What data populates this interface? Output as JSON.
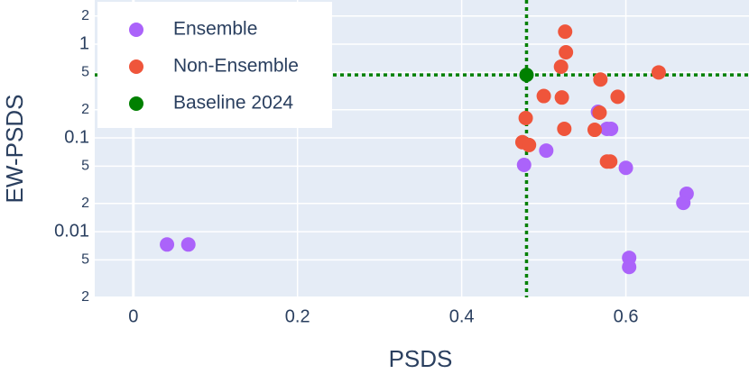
{
  "chart_data": {
    "type": "scatter",
    "x_label": "PSDS",
    "y_label": "EW-PSDS",
    "xlim": [
      -0.047,
      0.75
    ],
    "ylim": [
      0.00199,
      2.96
    ],
    "y_log": true,
    "grid": true,
    "legend": "top-left",
    "xticks": [
      0,
      0.2,
      0.4,
      0.6
    ],
    "yticks": [
      {
        "value": 0.002,
        "label": "2"
      },
      {
        "value": 0.005,
        "label": "5"
      },
      0.01,
      {
        "value": 0.02,
        "label": "2"
      },
      {
        "value": 0.05,
        "label": "5"
      },
      0.1,
      {
        "value": 0.2,
        "label": "2"
      },
      {
        "value": 0.5,
        "label": "5"
      },
      1,
      2
    ],
    "series": [
      {
        "name": "Ensemble",
        "color": "#ab63fa",
        "x": [
          0.041,
          0.067,
          0.476,
          0.503,
          0.566,
          0.577,
          0.582,
          0.6,
          0.674,
          0.67,
          0.604,
          0.604
        ],
        "values": [
          0.0073,
          0.0073,
          0.0515,
          0.0733,
          0.19,
          0.125,
          0.125,
          0.048,
          0.0254,
          0.0203,
          0.00526,
          0.0042
        ]
      },
      {
        "name": "Non-Ensemble",
        "color": "#ef553b",
        "x": [
          0.526,
          0.527,
          0.521,
          0.64,
          0.569,
          0.5,
          0.522,
          0.59,
          0.568,
          0.478,
          0.525,
          0.562,
          0.474,
          0.482,
          0.577,
          0.581
        ],
        "values": [
          1.36,
          0.82,
          0.575,
          0.5,
          0.42,
          0.28,
          0.27,
          0.275,
          0.186,
          0.163,
          0.125,
          0.122,
          0.09,
          0.084,
          0.056,
          0.056
        ]
      },
      {
        "name": "Baseline 2024",
        "color": "#008000",
        "x": [
          0.479
        ],
        "values": [
          0.47
        ]
      }
    ]
  }
}
